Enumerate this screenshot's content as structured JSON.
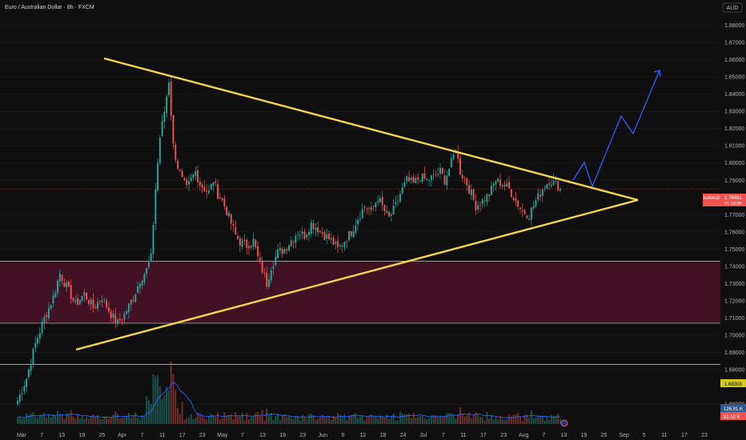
{
  "header": {
    "title": "Euro / Australian Dollar · 8h · FXCM",
    "currency": "AUD"
  },
  "colors": {
    "background": "#0f0f0f",
    "up": "#26a69a",
    "down": "#ef5350",
    "triangle": "#f7d64b",
    "projection": "#2962ff",
    "zone_fill": "#4a1228",
    "support_line": "#d4c91c",
    "volume_ma": "#2962ff"
  },
  "chart_data": {
    "type": "candlestick",
    "symbol": "EURAUD",
    "timeframe": "8h",
    "ylim": [
      1.66,
      1.89
    ],
    "y_ticks": [
      "1.88000",
      "1.87000",
      "1.86000",
      "1.85000",
      "1.84000",
      "1.83000",
      "1.82000",
      "1.81000",
      "1.80000",
      "1.79000",
      "1.77000",
      "1.76000",
      "1.75000",
      "1.74000",
      "1.73000",
      "1.72000",
      "1.71000",
      "1.70000",
      "1.69000",
      "1.68000",
      "1.66000"
    ],
    "x_ticks": [
      "Mar",
      "7",
      "13",
      "19",
      "25",
      "Apr",
      "7",
      "11",
      "17",
      "23",
      "May",
      "7",
      "13",
      "19",
      "23",
      "Jun",
      "6",
      "12",
      "18",
      "24",
      "Jul",
      "7",
      "11",
      "17",
      "23",
      "Aug",
      "7",
      "13",
      "19",
      "25",
      "Sep",
      "5",
      "11",
      "17",
      "23"
    ],
    "price_anchors": [
      [
        0,
        1.662
      ],
      [
        4,
        1.675
      ],
      [
        8,
        1.695
      ],
      [
        12,
        1.71
      ],
      [
        16,
        1.722
      ],
      [
        19,
        1.736
      ],
      [
        22,
        1.728
      ],
      [
        26,
        1.718
      ],
      [
        30,
        1.724
      ],
      [
        34,
        1.716
      ],
      [
        38,
        1.722
      ],
      [
        42,
        1.712
      ],
      [
        45,
        1.707
      ],
      [
        48,
        1.712
      ],
      [
        52,
        1.722
      ],
      [
        55,
        1.732
      ],
      [
        58,
        1.738
      ],
      [
        60,
        1.745
      ],
      [
        62,
        1.785
      ],
      [
        64,
        1.815
      ],
      [
        66,
        1.83
      ],
      [
        68,
        1.848
      ],
      [
        70,
        1.81
      ],
      [
        72,
        1.798
      ],
      [
        74,
        1.79
      ],
      [
        76,
        1.785
      ],
      [
        78,
        1.79
      ],
      [
        80,
        1.795
      ],
      [
        82,
        1.788
      ],
      [
        84,
        1.785
      ],
      [
        86,
        1.783
      ],
      [
        88,
        1.79
      ],
      [
        90,
        1.782
      ],
      [
        92,
        1.778
      ],
      [
        94,
        1.772
      ],
      [
        96,
        1.765
      ],
      [
        98,
        1.758
      ],
      [
        100,
        1.754
      ],
      [
        103,
        1.752
      ],
      [
        106,
        1.755
      ],
      [
        108,
        1.745
      ],
      [
        110,
        1.738
      ],
      [
        112,
        1.73
      ],
      [
        114,
        1.74
      ],
      [
        117,
        1.748
      ],
      [
        120,
        1.75
      ],
      [
        123,
        1.755
      ],
      [
        126,
        1.76
      ],
      [
        129,
        1.758
      ],
      [
        132,
        1.765
      ],
      [
        135,
        1.762
      ],
      [
        138,
        1.758
      ],
      [
        141,
        1.755
      ],
      [
        144,
        1.75
      ],
      [
        147,
        1.755
      ],
      [
        150,
        1.76
      ],
      [
        153,
        1.768
      ],
      [
        156,
        1.775
      ],
      [
        159,
        1.772
      ],
      [
        162,
        1.78
      ],
      [
        165,
        1.772
      ],
      [
        167,
        1.768
      ],
      [
        170,
        1.775
      ],
      [
        172,
        1.782
      ],
      [
        175,
        1.79
      ],
      [
        178,
        1.788
      ],
      [
        181,
        1.792
      ],
      [
        184,
        1.79
      ],
      [
        187,
        1.792
      ],
      [
        190,
        1.795
      ],
      [
        192,
        1.79
      ],
      [
        195,
        1.8
      ],
      [
        197,
        1.808
      ],
      [
        199,
        1.795
      ],
      [
        202,
        1.788
      ],
      [
        204,
        1.782
      ],
      [
        206,
        1.775
      ],
      [
        209,
        1.778
      ],
      [
        212,
        1.782
      ],
      [
        215,
        1.79
      ],
      [
        218,
        1.788
      ],
      [
        221,
        1.785
      ],
      [
        224,
        1.778
      ],
      [
        227,
        1.772
      ],
      [
        230,
        1.77
      ],
      [
        233,
        1.778
      ],
      [
        236,
        1.785
      ],
      [
        239,
        1.79
      ],
      [
        242,
        1.788
      ],
      [
        244,
        1.785
      ]
    ],
    "n_candles": 245,
    "volume_ylim": [
      0,
      100
    ],
    "zone": [
      1.707,
      1.743
    ],
    "support_level": 1.68303,
    "triangle_upper": [
      [
        130,
        73
      ],
      [
        797,
        250
      ]
    ],
    "triangle_lower": [
      [
        95,
        437
      ],
      [
        797,
        250
      ]
    ],
    "projection_path": [
      [
        716,
        225
      ],
      [
        730,
        203
      ],
      [
        740,
        233
      ],
      [
        776,
        145
      ],
      [
        791,
        167
      ],
      [
        824,
        88
      ]
    ],
    "price_labels": {
      "symbol": "EURAUD",
      "price": "1.78481",
      "countdown": "01:19:36",
      "support": "1.68303",
      "volume": "126.91 K",
      "volume_ma": "81.02 K"
    }
  }
}
